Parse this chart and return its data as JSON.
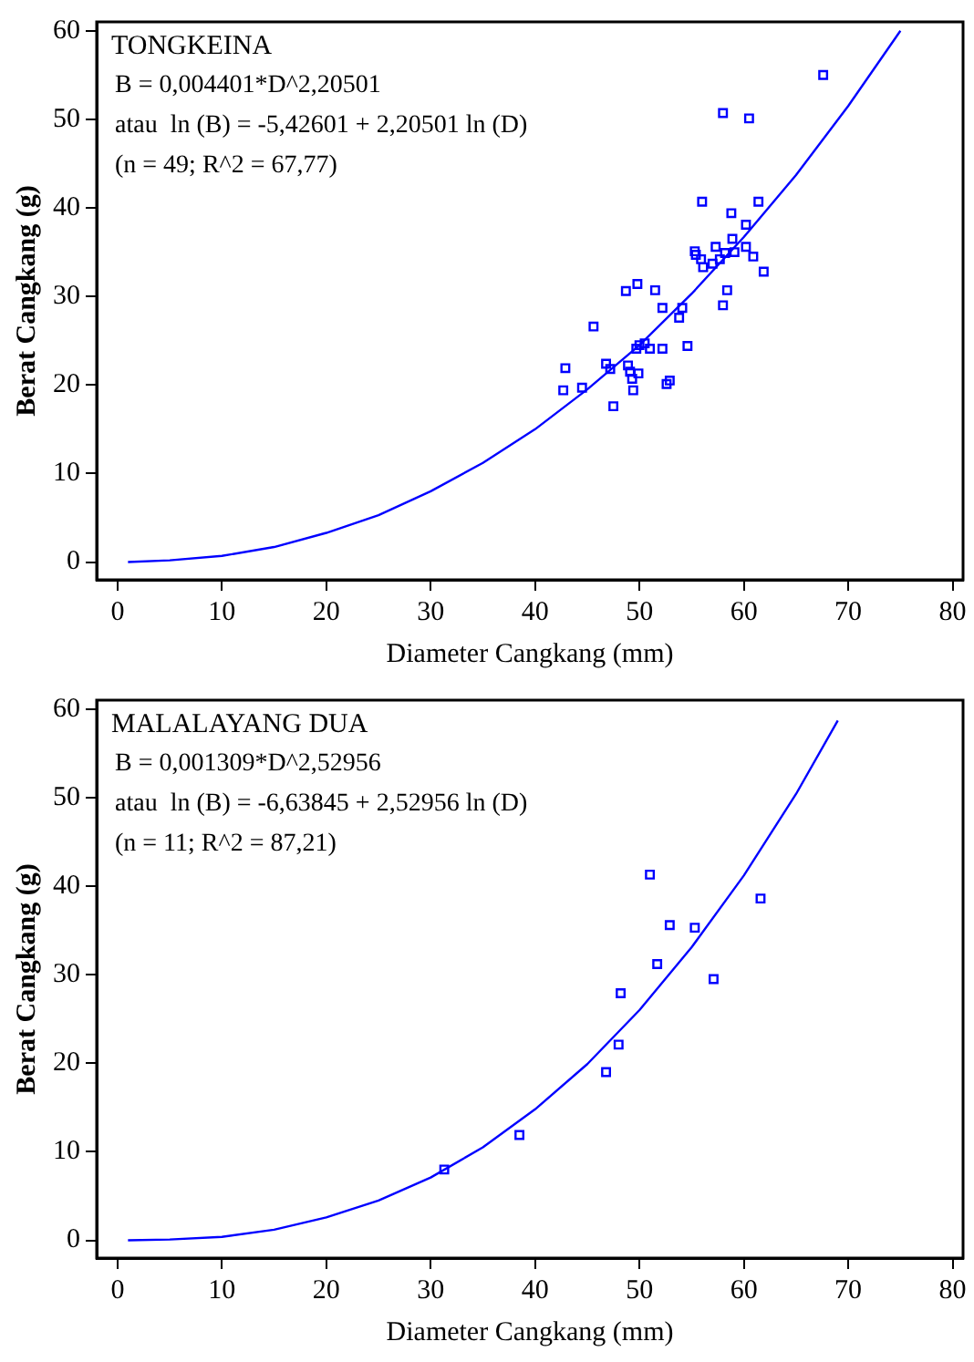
{
  "chart_data": [
    {
      "type": "scatter",
      "title": "TONGKEINA",
      "annotations": [
        "B = 0,004401*D^2,20501",
        "atau  ln (B) = -5,42601 + 2,20501 ln (D)",
        "(n = 49; R^2 = 67,77)"
      ],
      "xlabel": "Diameter Cangkang (mm)",
      "ylabel": "Berat Cangkang (g)",
      "xlim": [
        -2,
        81
      ],
      "ylim": [
        -2,
        61
      ],
      "xticks": [
        0,
        10,
        20,
        30,
        40,
        50,
        60,
        70,
        80
      ],
      "yticks": [
        0,
        10,
        20,
        30,
        40,
        50,
        60
      ],
      "grid": false,
      "legend": false,
      "marker": "square",
      "series": [
        {
          "color": "#0000ff",
          "x": [
            67.6,
            58.0,
            60.5,
            56.0,
            61.4,
            58.8,
            60.2,
            58.9,
            57.3,
            60.2,
            55.3,
            55.4,
            55.9,
            58.2,
            59.1,
            57.7,
            57.0,
            56.1,
            60.9,
            61.9,
            48.7,
            49.8,
            51.5,
            58.4,
            52.2,
            54.1,
            58.0,
            53.8,
            45.6,
            50.0,
            50.5,
            49.7,
            51.0,
            52.2,
            54.6,
            46.8,
            47.2,
            48.9,
            42.9,
            49.1,
            49.9,
            49.3,
            52.6,
            52.9,
            42.7,
            44.5,
            49.4,
            47.5
          ],
          "values": [
            55.0,
            50.7,
            50.1,
            40.7,
            40.7,
            39.4,
            38.1,
            36.5,
            35.6,
            35.6,
            35.1,
            34.7,
            34.2,
            34.9,
            35.0,
            34.2,
            33.7,
            33.3,
            34.5,
            32.8,
            30.6,
            31.4,
            30.7,
            30.7,
            28.7,
            28.7,
            29.0,
            27.6,
            26.6,
            24.5,
            24.7,
            24.1,
            24.1,
            24.1,
            24.4,
            22.4,
            21.8,
            22.2,
            21.9,
            21.5,
            21.3,
            20.7,
            20.1,
            20.5,
            19.4,
            19.7,
            19.4,
            17.6
          ]
        },
        {
          "type": "line",
          "color": "#0000ff",
          "marker": "none",
          "x": [
            1,
            5,
            10,
            15,
            20,
            25,
            30,
            35,
            40,
            45,
            50,
            55,
            60,
            65,
            70,
            75
          ],
          "values": [
            0,
            0.2,
            0.7,
            1.7,
            3.3,
            5.3,
            8.0,
            11.2,
            15.0,
            19.5,
            24.5,
            30.3,
            36.7,
            43.7,
            51.5,
            60.0
          ]
        }
      ]
    },
    {
      "type": "scatter",
      "title": "MALALAYANG DUA",
      "annotations": [
        "B = 0,001309*D^2,52956",
        "atau  ln (B) = -6,63845 + 2,52956 ln (D)",
        "(n = 11; R^2 = 87,21)"
      ],
      "xlabel": "Diameter Cangkang (mm)",
      "ylabel": "Berat Cangkang (g)",
      "xlim": [
        -2,
        81
      ],
      "ylim": [
        -2,
        61
      ],
      "xticks": [
        0,
        10,
        20,
        30,
        40,
        50,
        60,
        70,
        80
      ],
      "yticks": [
        0,
        10,
        20,
        30,
        40,
        50,
        60
      ],
      "grid": false,
      "legend": false,
      "marker": "square",
      "series": [
        {
          "color": "#0000ff",
          "x": [
            51.0,
            61.6,
            52.9,
            55.3,
            51.7,
            57.1,
            48.2,
            48.0,
            46.8,
            38.5,
            31.3
          ],
          "values": [
            41.3,
            38.6,
            35.6,
            35.3,
            31.2,
            29.5,
            27.9,
            22.1,
            19.0,
            11.9,
            8.0
          ]
        },
        {
          "type": "line",
          "color": "#0000ff",
          "marker": "none",
          "x": [
            1,
            5,
            10,
            15,
            20,
            25,
            30,
            35,
            40,
            45,
            50,
            55,
            60,
            65,
            69
          ],
          "values": [
            0,
            0.1,
            0.4,
            1.2,
            2.6,
            4.5,
            7.1,
            10.5,
            14.8,
            19.9,
            26.0,
            33.1,
            41.2,
            50.4,
            58.7
          ]
        }
      ]
    }
  ]
}
